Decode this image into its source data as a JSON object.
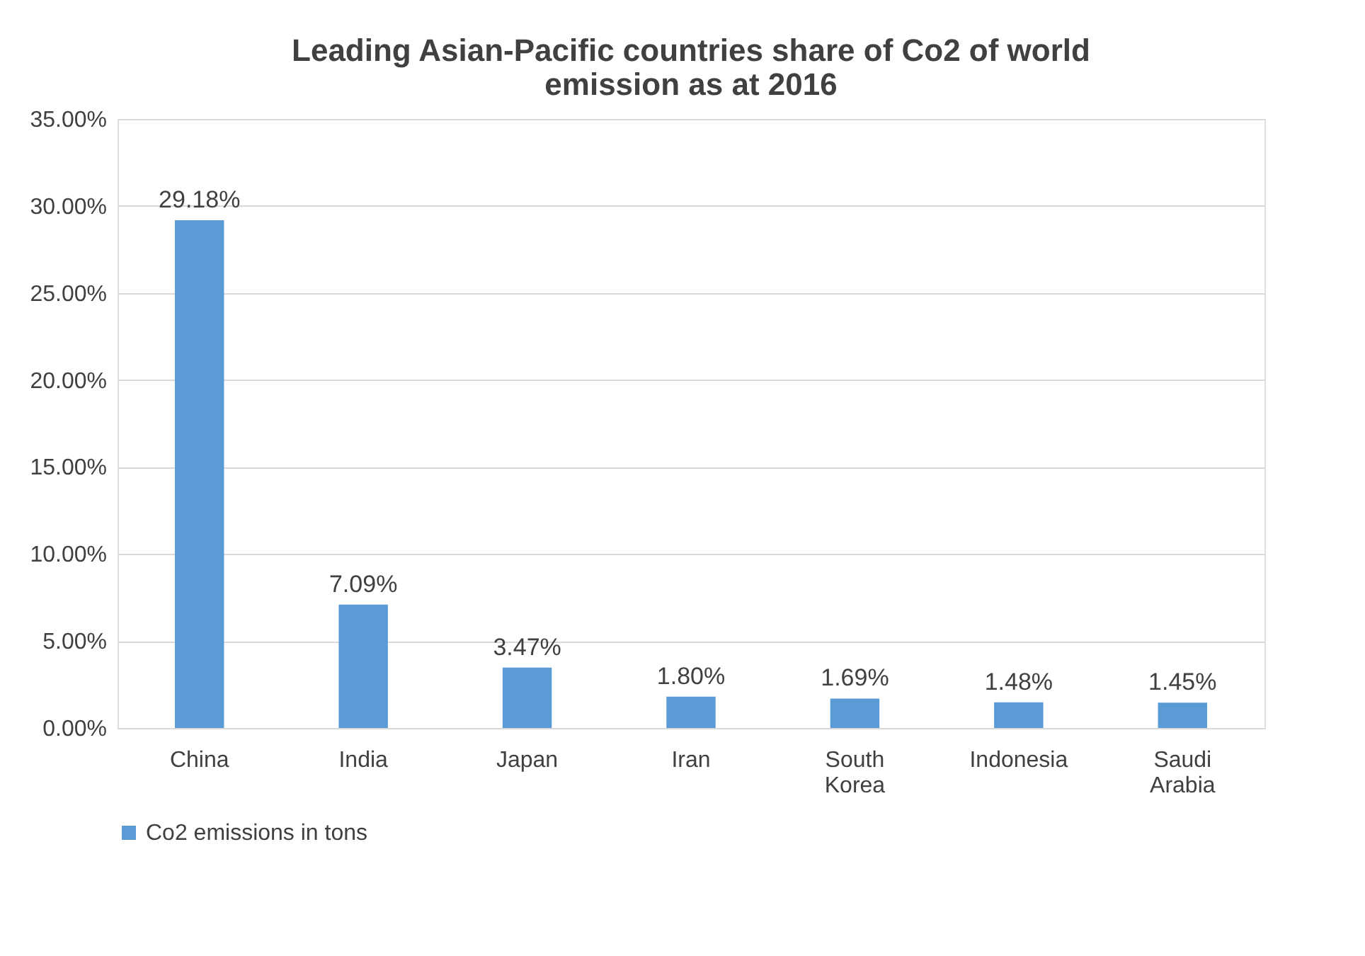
{
  "chart_data": {
    "type": "bar",
    "title": "Leading Asian-Pacific countries share of Co2 of world emission as at 2016",
    "categories": [
      "China",
      "India",
      "Japan",
      "Iran",
      "South Korea",
      "Indonesia",
      "Saudi Arabia"
    ],
    "series": [
      {
        "name": "Co2 emissions in tons",
        "color": "#5b9bd5",
        "values": [
          29.18,
          7.09,
          3.47,
          1.8,
          1.69,
          1.48,
          1.45
        ]
      }
    ],
    "value_labels": [
      "29.18%",
      "7.09%",
      "3.47%",
      "1.80%",
      "1.69%",
      "1.48%",
      "1.45%"
    ],
    "ylim": [
      0,
      35
    ],
    "yticks": [
      {
        "value": 0,
        "label": "0.00%"
      },
      {
        "value": 5,
        "label": "5.00%"
      },
      {
        "value": 10,
        "label": "10.00%"
      },
      {
        "value": 15,
        "label": "15.00%"
      },
      {
        "value": 20,
        "label": "20.00%"
      },
      {
        "value": 25,
        "label": "25.00%"
      },
      {
        "value": 30,
        "label": "30.00%"
      },
      {
        "value": 35,
        "label": "35.00%"
      }
    ],
    "grid": "y",
    "legend": "bottom"
  }
}
